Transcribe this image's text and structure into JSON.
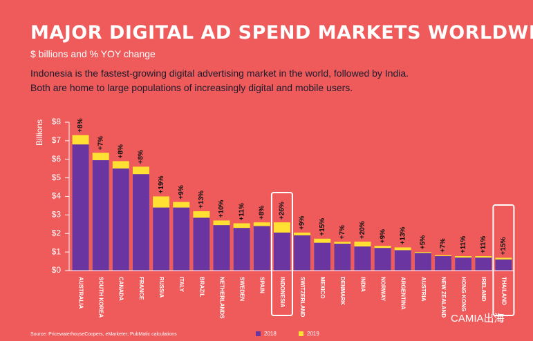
{
  "chart_data": {
    "type": "bar",
    "title": "MAJOR DIGITAL AD SPEND MARKETS WORLDWIDE",
    "subtitle": "$ billions and % YOY change",
    "description": [
      "Indonesia is the fastest-growing digital advertising market in the world, followed by India.",
      "Both are home to large populations of increasingly digital and mobile users."
    ],
    "ylabel": "Billions",
    "categories": [
      "AUSTRALIA",
      "SOUTH KOREA",
      "CANADA",
      "FRANCE",
      "RUSSIA",
      "ITALY",
      "BRAZIL",
      "NETHERLANDS",
      "SWEDEN",
      "SPAIN",
      "INDONESIA",
      "SWITZERLAND",
      "MEXICO",
      "DENMARK",
      "INDIA",
      "NORWAY",
      "ARGENTINA",
      "AUSTRIA",
      "NEW ZEALAND",
      "HONG KONG",
      "IRELAND",
      "THAILAND"
    ],
    "series": [
      {
        "name": "2019",
        "color": "#ffe033",
        "values": [
          7.3,
          6.35,
          5.9,
          5.6,
          4.0,
          3.7,
          3.2,
          2.7,
          2.55,
          2.6,
          2.6,
          2.05,
          1.72,
          1.55,
          1.56,
          1.33,
          1.25,
          1.0,
          0.83,
          0.78,
          0.78,
          0.69
        ]
      },
      {
        "name": "2018",
        "color": "#6a35a0",
        "values": [
          6.8,
          5.95,
          5.5,
          5.2,
          3.4,
          3.4,
          2.85,
          2.45,
          2.3,
          2.4,
          2.05,
          1.9,
          1.5,
          1.45,
          1.3,
          1.22,
          1.1,
          0.95,
          0.78,
          0.7,
          0.7,
          0.6
        ]
      }
    ],
    "growth_labels": [
      "+8%",
      "+7%",
      "+8%",
      "+8%",
      "+19%",
      "+9%",
      "+13%",
      "+10%",
      "+11%",
      "+8%",
      "+26%",
      "+9%",
      "+15%",
      "+7%",
      "+20%",
      "+9%",
      "+13%",
      "+5%",
      "+7%",
      "+11%",
      "+11%",
      "+15%"
    ],
    "highlight": [
      "INDONESIA",
      "THAILAND"
    ],
    "ylim": [
      0,
      8
    ],
    "yticks": [
      {
        "value": 0,
        "label": "$0"
      },
      {
        "value": 1,
        "label": "$1"
      },
      {
        "value": 2,
        "label": "$2"
      },
      {
        "value": 3,
        "label": "$3"
      },
      {
        "value": 4,
        "label": "$4"
      },
      {
        "value": 5,
        "label": "$5"
      },
      {
        "value": 6,
        "label": "$6"
      },
      {
        "value": 7,
        "label": "$7"
      },
      {
        "value": 8,
        "label": "$8"
      }
    ],
    "source": "Source: PricewaterhouseCoopers, eMarketer; PubMatic calculations",
    "watermark": "CAMIA出海"
  }
}
